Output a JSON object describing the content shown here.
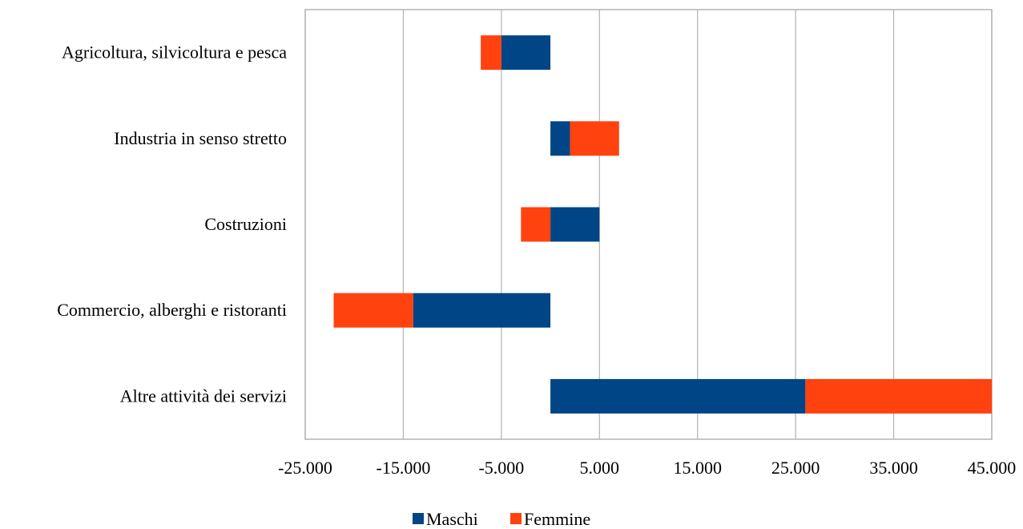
{
  "chart_data": {
    "type": "bar",
    "orientation": "horizontal",
    "stacked": true,
    "categories": [
      "Agricoltura, silvicoltura e pesca",
      "Industria in senso stretto",
      "Costruzioni",
      "Commercio, alberghi e ristoranti",
      "Altre attività dei servizi"
    ],
    "series": [
      {
        "name": "Maschi",
        "color": "#004586",
        "values": [
          -5000,
          2000,
          5000,
          -14000,
          26000
        ]
      },
      {
        "name": "Femmine",
        "color": "#ff420e",
        "values": [
          -2100,
          5000,
          -3000,
          -8100,
          19000
        ]
      }
    ],
    "xlim": [
      -25000,
      45000
    ],
    "xticks": [
      -25000,
      -15000,
      -5000,
      5000,
      15000,
      25000,
      35000,
      45000
    ],
    "xtick_labels": [
      "-25.000",
      "-15.000",
      "-5.000",
      "5.000",
      "15.000",
      "25.000",
      "35.000",
      "45.000"
    ],
    "gridlines": "vertical",
    "legend_position": "bottom",
    "title": "",
    "xlabel": "",
    "ylabel": ""
  }
}
